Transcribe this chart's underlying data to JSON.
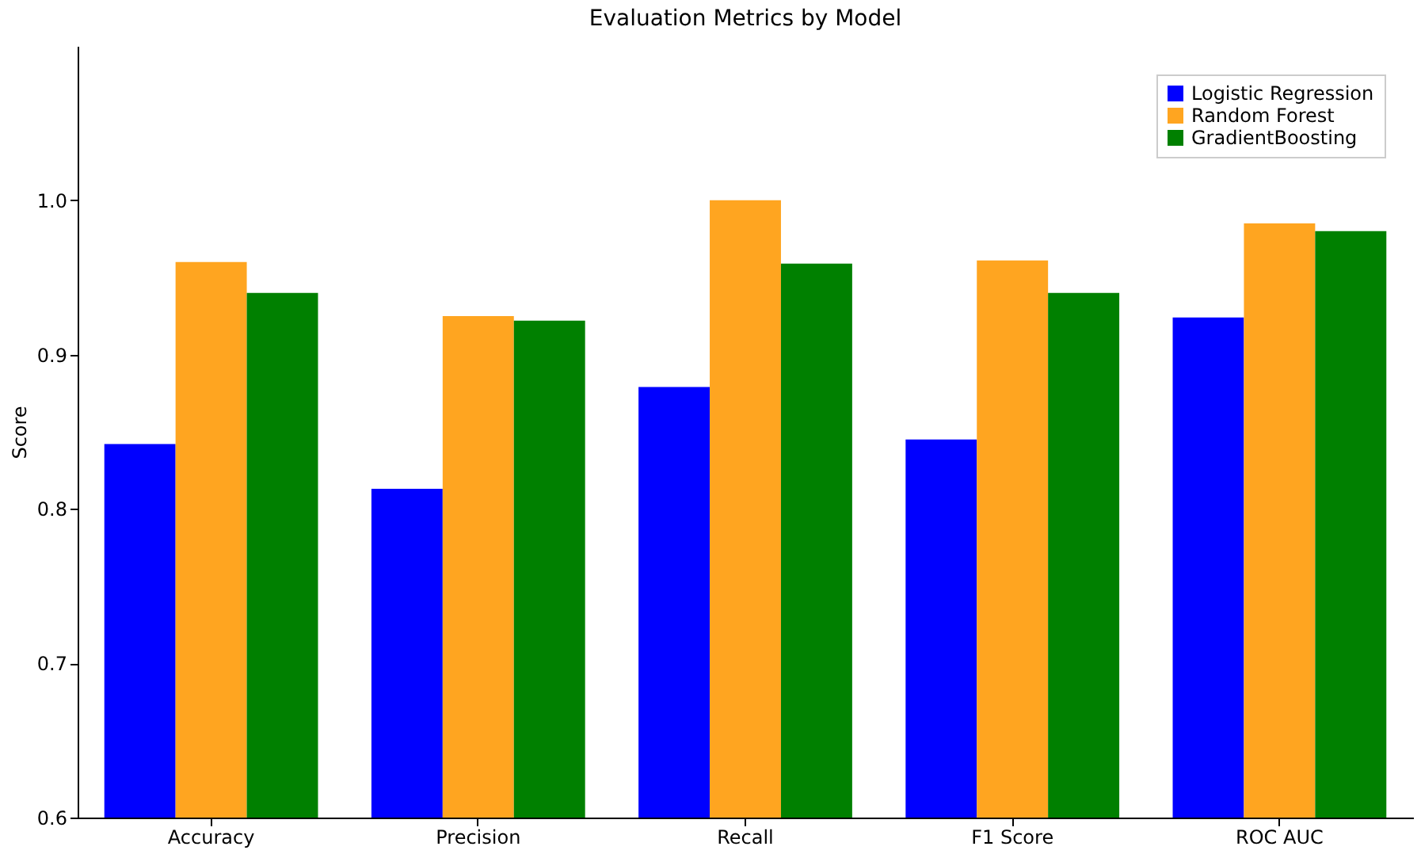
{
  "chart_data": {
    "type": "bar",
    "title": "Evaluation Metrics by Model",
    "ylabel": "Score",
    "categories": [
      "Accuracy",
      "Precision",
      "Recall",
      "F1 Score",
      "ROC AUC"
    ],
    "series": [
      {
        "name": "Logistic Regression",
        "color": "#0000ff",
        "values": [
          0.842,
          0.813,
          0.879,
          0.845,
          0.924
        ]
      },
      {
        "name": "Random Forest",
        "color": "#ffa520",
        "values": [
          0.96,
          0.925,
          1.0,
          0.961,
          0.985
        ]
      },
      {
        "name": "GradientBoosting",
        "color": "#008000",
        "values": [
          0.94,
          0.922,
          0.959,
          0.94,
          0.98
        ]
      }
    ],
    "ylim": [
      0.6,
      1.1
    ],
    "yticks": [
      0.6,
      0.7,
      0.8,
      0.9,
      {
        "value": 1,
        "label": "1.0"
      }
    ],
    "grid": false,
    "legend": "top right"
  }
}
